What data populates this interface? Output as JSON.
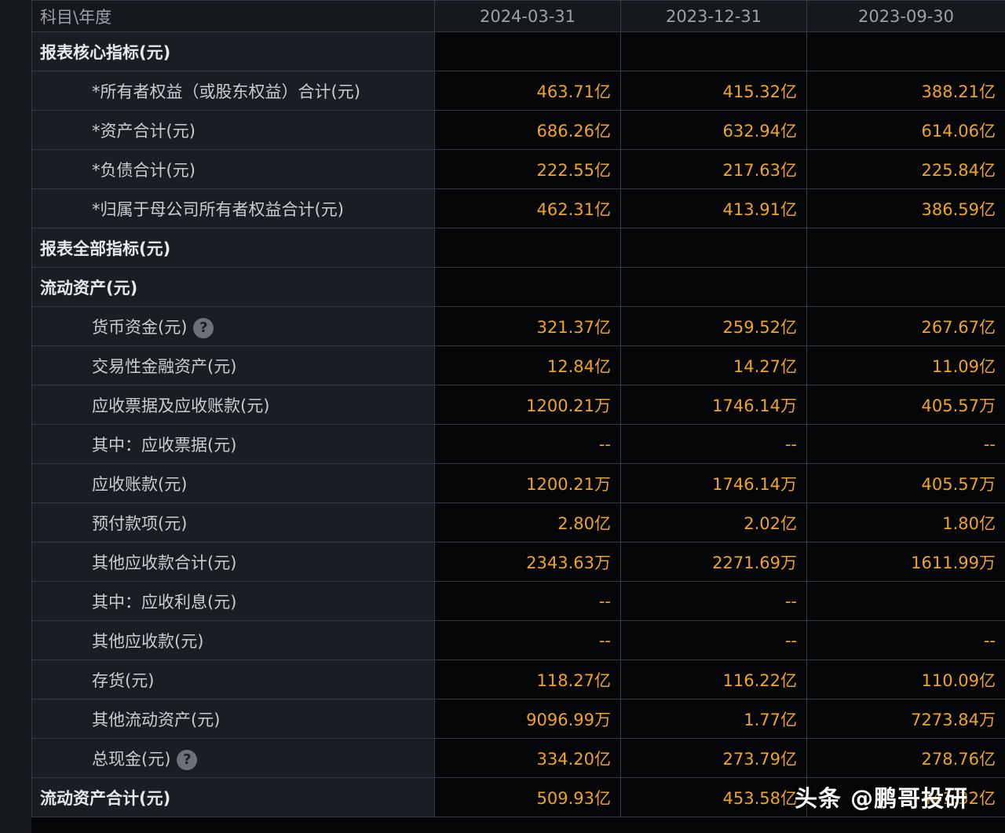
{
  "columns": {
    "label": "科目\\年度",
    "dates": [
      "2024-03-31",
      "2023-12-31",
      "2023-09-30"
    ]
  },
  "rows": [
    {
      "type": "section",
      "label": "报表核心指标(元)",
      "values": [
        "",
        "",
        ""
      ]
    },
    {
      "type": "sub",
      "label": "*所有者权益（或股东权益）合计(元)",
      "values": [
        "463.71亿",
        "415.32亿",
        "388.21亿"
      ]
    },
    {
      "type": "sub",
      "label": "*资产合计(元)",
      "values": [
        "686.26亿",
        "632.94亿",
        "614.06亿"
      ]
    },
    {
      "type": "sub",
      "label": "*负债合计(元)",
      "values": [
        "222.55亿",
        "217.63亿",
        "225.84亿"
      ]
    },
    {
      "type": "sub",
      "label": "*归属于母公司所有者权益合计(元)",
      "values": [
        "462.31亿",
        "413.91亿",
        "386.59亿"
      ]
    },
    {
      "type": "section",
      "label": "报表全部指标(元)",
      "values": [
        "",
        "",
        ""
      ]
    },
    {
      "type": "section",
      "label": "流动资产(元)",
      "values": [
        "",
        "",
        ""
      ]
    },
    {
      "type": "sub",
      "label": "货币资金(元)",
      "help": true,
      "values": [
        "321.37亿",
        "259.52亿",
        "267.67亿"
      ]
    },
    {
      "type": "sub",
      "label": "交易性金融资产(元)",
      "values": [
        "12.84亿",
        "14.27亿",
        "11.09亿"
      ]
    },
    {
      "type": "sub",
      "label": "应收票据及应收账款(元)",
      "values": [
        "1200.21万",
        "1746.14万",
        "405.57万"
      ]
    },
    {
      "type": "sub",
      "label": "其中：应收票据(元)",
      "values": [
        "--",
        "--",
        "--"
      ]
    },
    {
      "type": "sub",
      "label": "应收账款(元)",
      "values": [
        "1200.21万",
        "1746.14万",
        "405.57万"
      ]
    },
    {
      "type": "sub",
      "label": "预付款项(元)",
      "values": [
        "2.80亿",
        "2.02亿",
        "1.80亿"
      ]
    },
    {
      "type": "sub",
      "label": "其他应收款合计(元)",
      "values": [
        "2343.63万",
        "2271.69万",
        "1611.99万"
      ]
    },
    {
      "type": "sub",
      "label": "其中：应收利息(元)",
      "values": [
        "--",
        "--",
        ""
      ]
    },
    {
      "type": "sub",
      "label": "其他应收款(元)",
      "values": [
        "--",
        "--",
        "--"
      ]
    },
    {
      "type": "sub",
      "label": "存货(元)",
      "values": [
        "118.27亿",
        "116.22亿",
        "110.09亿"
      ]
    },
    {
      "type": "sub",
      "label": "其他流动资产(元)",
      "values": [
        "9096.99万",
        "1.77亿",
        "7273.84万"
      ]
    },
    {
      "type": "sub",
      "label": "总现金(元)",
      "help": true,
      "values": [
        "334.20亿",
        "273.79亿",
        "278.76亿"
      ]
    },
    {
      "type": "section",
      "label": "流动资产合计(元)",
      "values": [
        "509.93亿",
        "453.58亿",
        "441.32亿"
      ]
    }
  ],
  "help_icon_glyph": "?",
  "watermark": "头条 @鹏哥投研",
  "colors": {
    "value": "#f0a32b",
    "label": "#c9ced3",
    "header": "#9aa3ad"
  }
}
